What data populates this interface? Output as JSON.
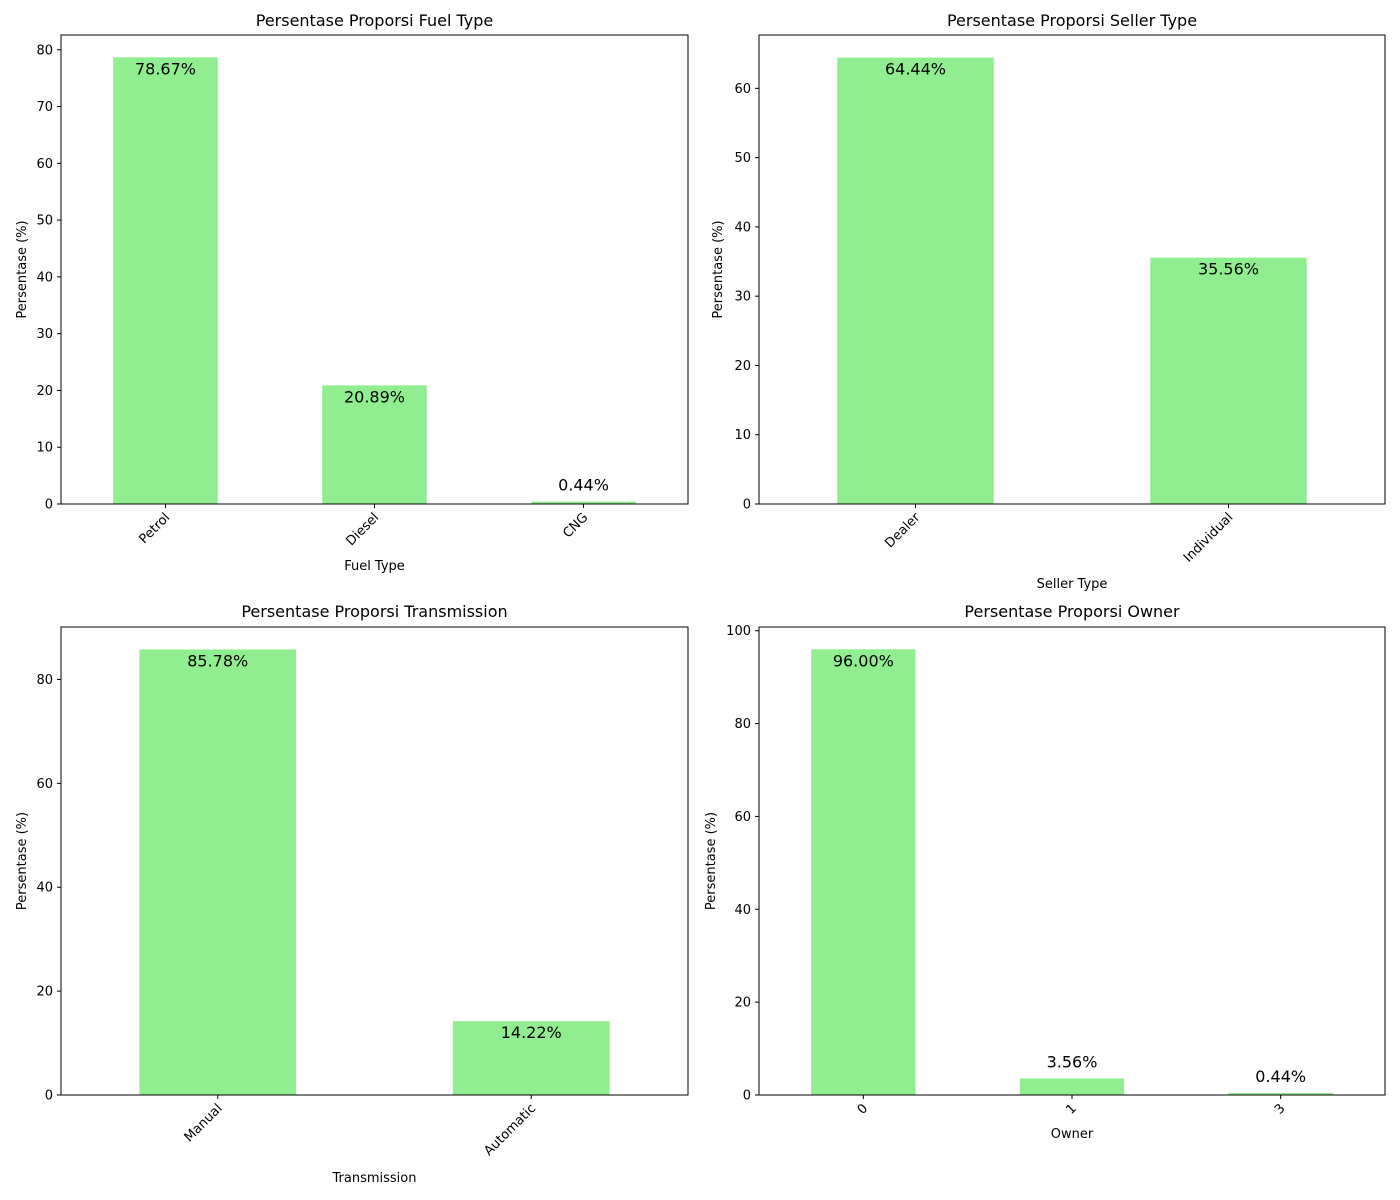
{
  "bar_color": "#90ee90",
  "chart_data": [
    {
      "type": "bar",
      "title": "Persentase Proporsi Fuel Type",
      "xlabel": "Fuel Type",
      "ylabel": "Persentase (%)",
      "categories": [
        "Petrol",
        "Diesel",
        "CNG"
      ],
      "values": [
        78.67,
        20.89,
        0.44
      ],
      "data_labels": [
        "78.67%",
        "20.89%",
        "0.44%"
      ],
      "ylim": [
        0,
        82.6
      ],
      "yticks": [
        0,
        10,
        20,
        30,
        40,
        50,
        60,
        70,
        80
      ],
      "grid": false
    },
    {
      "type": "bar",
      "title": "Persentase Proporsi Seller Type",
      "xlabel": "Seller Type",
      "ylabel": "Persentase (%)",
      "categories": [
        "Dealer",
        "Individual"
      ],
      "values": [
        64.44,
        35.56
      ],
      "data_labels": [
        "64.44%",
        "35.56%"
      ],
      "ylim": [
        0,
        67.7
      ],
      "yticks": [
        0,
        10,
        20,
        30,
        40,
        50,
        60
      ],
      "grid": false
    },
    {
      "type": "bar",
      "title": "Persentase Proporsi Transmission",
      "xlabel": "Transmission",
      "ylabel": "Persentase (%)",
      "categories": [
        "Manual",
        "Automatic"
      ],
      "values": [
        85.78,
        14.22
      ],
      "data_labels": [
        "85.78%",
        "14.22%"
      ],
      "ylim": [
        0,
        90.1
      ],
      "yticks": [
        0,
        20,
        40,
        60,
        80
      ],
      "grid": false
    },
    {
      "type": "bar",
      "title": "Persentase Proporsi Owner",
      "xlabel": "Owner",
      "ylabel": "Persentase (%)",
      "categories": [
        "0",
        "1",
        "3"
      ],
      "values": [
        96.0,
        3.56,
        0.44
      ],
      "data_labels": [
        "96.00%",
        "3.56%",
        "0.44%"
      ],
      "ylim": [
        0,
        100.8
      ],
      "yticks": [
        0,
        20,
        40,
        60,
        80,
        100
      ],
      "grid": false
    }
  ]
}
